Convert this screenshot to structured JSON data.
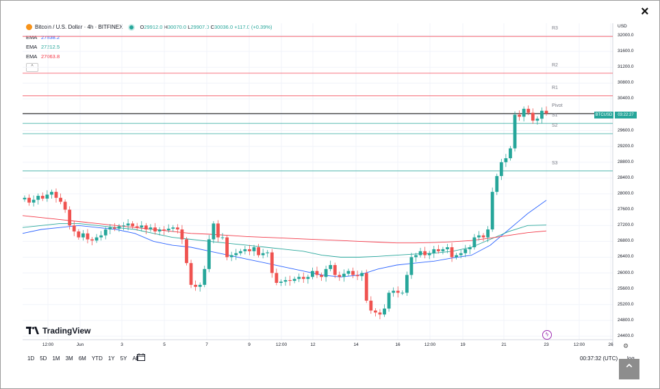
{
  "close_label": "×",
  "header": {
    "symbol": "Bitcoin / U.S. Dollar · 4h · BITFINEX",
    "o_label": "O",
    "o": "29912.0",
    "h_label": "H",
    "h": "30070.0",
    "l_label": "L",
    "l": "29907.0",
    "c_label": "C",
    "c": "30036.0",
    "change": "+117.0 (+0.39%)"
  },
  "emas": [
    {
      "label": "EMA",
      "value": "27838.2",
      "color": "#2962ff"
    },
    {
      "label": "EMA",
      "value": "27212.5",
      "color": "#26a69a"
    },
    {
      "label": "EMA",
      "value": "27063.8",
      "color": "#f23645"
    }
  ],
  "collapse_label": "^",
  "currency": "USD",
  "price_tag": {
    "symbol": "BTCUSD",
    "countdown": "03:22:27"
  },
  "pivots": [
    {
      "label": "R3",
      "price": 31980,
      "color": "#f23645"
    },
    {
      "label": "R2",
      "price": 31050,
      "color": "#f23645"
    },
    {
      "label": "R1",
      "price": 30480,
      "color": "#f23645"
    },
    {
      "label": "Pivot",
      "price": 30030,
      "color": "#000000"
    },
    {
      "label": "S1",
      "price": 29780,
      "color": "#26a69a"
    },
    {
      "label": "S2",
      "price": 29520,
      "color": "#26a69a"
    },
    {
      "label": "S3",
      "price": 28580,
      "color": "#26a69a"
    }
  ],
  "chart_data": {
    "type": "candlestick",
    "yticks": [
      "32000.0",
      "31600.0",
      "31200.0",
      "30800.0",
      "30400.0",
      "30000.0",
      "29600.0",
      "29200.0",
      "28800.0",
      "28400.0",
      "28000.0",
      "27600.0",
      "27200.0",
      "26800.0",
      "26400.0",
      "26000.0",
      "25600.0",
      "25200.0",
      "24800.0",
      "24400.0"
    ],
    "xticks": [
      "12:00",
      "Jun",
      "3",
      "5",
      "7",
      "9",
      "12:00",
      "12",
      "14",
      "16",
      "12:00",
      "19",
      "21",
      "23",
      "12:00",
      "26"
    ],
    "ylim": [
      24400,
      32000
    ],
    "closes": [
      27900,
      27780,
      27850,
      27950,
      27880,
      27980,
      28050,
      27900,
      27800,
      27600,
      27200,
      27050,
      26900,
      27000,
      26850,
      26820,
      26900,
      26950,
      27100,
      27150,
      27120,
      27180,
      27200,
      27250,
      27180,
      27150,
      27200,
      27100,
      27150,
      27050,
      27100,
      27080,
      27120,
      27150,
      27100,
      26850,
      26250,
      25700,
      25650,
      25700,
      26100,
      26850,
      27250,
      26900,
      26900,
      26400,
      26450,
      26500,
      26550,
      26600,
      26550,
      26650,
      26450,
      26500,
      26520,
      26000,
      25750,
      25780,
      25820,
      25800,
      25850,
      25900,
      25850,
      25900,
      26050,
      25950,
      25900,
      26100,
      26200,
      25950,
      25900,
      25980,
      26050,
      25950,
      25920,
      26000,
      25300,
      25050,
      25000,
      24950,
      25100,
      25500,
      25550,
      25500,
      25500,
      25950,
      26400,
      26450,
      26550,
      26450,
      26500,
      26600,
      26550,
      26600,
      26650,
      26400,
      26450,
      26500,
      26600,
      26650,
      26900,
      26950,
      26900,
      27100,
      28050,
      28450,
      28800,
      28900,
      29150,
      30000,
      29950,
      30150,
      30050,
      29850,
      29900,
      30100,
      30036
    ],
    "ema_series": [
      {
        "name": "EMA",
        "color": "#2962ff",
        "values": [
          27000,
          27100,
          27150,
          27200,
          27150,
          27100,
          27000,
          26800,
          26700,
          26650,
          26550,
          26450,
          26350,
          26250,
          26150,
          26050,
          25950,
          25900,
          25950,
          26100,
          26200,
          26250,
          26300,
          26380,
          26450,
          26700,
          27100,
          27500,
          27838
        ]
      },
      {
        "name": "EMA",
        "color": "#26a69a",
        "values": [
          27150,
          27200,
          27250,
          27250,
          27200,
          27150,
          27100,
          27000,
          26900,
          26850,
          26800,
          26750,
          26700,
          26650,
          26600,
          26550,
          26450,
          26400,
          26400,
          26420,
          26450,
          26480,
          26500,
          26550,
          26650,
          26850,
          27050,
          27200,
          27212
        ]
      },
      {
        "name": "EMA",
        "color": "#f23645",
        "values": [
          27450,
          27400,
          27350,
          27300,
          27250,
          27200,
          27150,
          27100,
          27050,
          27000,
          26980,
          26950,
          26920,
          26900,
          26880,
          26860,
          26840,
          26820,
          26800,
          26780,
          26760,
          26760,
          26770,
          26790,
          26820,
          26880,
          26950,
          27020,
          27063
        ]
      }
    ]
  },
  "watermark": "TradingView",
  "timeframes": [
    "1D",
    "5D",
    "1M",
    "3M",
    "6M",
    "YTD",
    "1Y",
    "5Y",
    "All"
  ],
  "clock": "00:37:32 (UTC)",
  "log_label": "log"
}
